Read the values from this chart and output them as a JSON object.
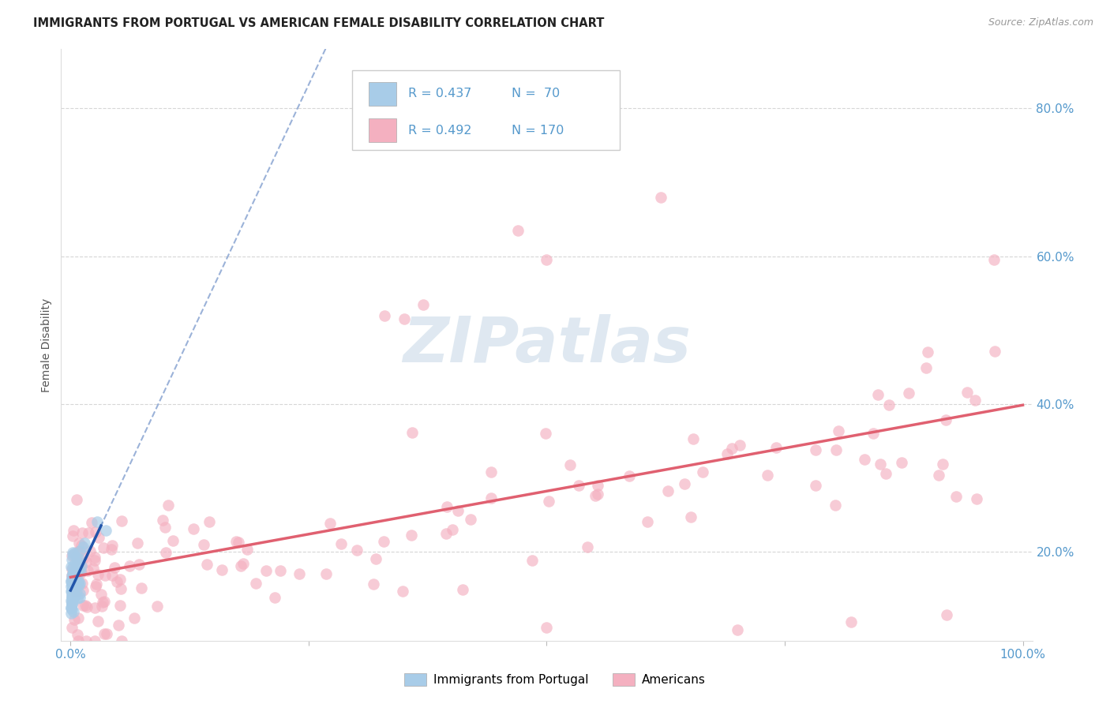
{
  "title": "IMMIGRANTS FROM PORTUGAL VS AMERICAN FEMALE DISABILITY CORRELATION CHART",
  "source": "Source: ZipAtlas.com",
  "ylabel": "Female Disability",
  "legend_blue_r": "R = 0.437",
  "legend_blue_n": "N =  70",
  "legend_pink_r": "R = 0.492",
  "legend_pink_n": "N = 170",
  "legend_label_blue": "Immigrants from Portugal",
  "legend_label_pink": "Americans",
  "blue_color": "#a8cce8",
  "pink_color": "#f4b0c0",
  "trendline_blue_color": "#2255aa",
  "trendline_pink_color": "#e06070",
  "watermark": "ZIPatlas",
  "background_color": "#ffffff",
  "grid_color": "#cccccc",
  "xlim": [
    -0.01,
    1.01
  ],
  "ylim": [
    0.08,
    0.88
  ],
  "ytick_positions": [
    0.2,
    0.4,
    0.6,
    0.8
  ],
  "ytick_labels": [
    "20.0%",
    "40.0%",
    "60.0%",
    "80.0%"
  ],
  "xtick_positions": [
    0.0,
    0.25,
    0.5,
    0.75,
    1.0
  ],
  "xtick_labels": [
    "0.0%",
    "",
    "",
    "",
    "100.0%"
  ],
  "tick_color": "#5599cc",
  "title_color": "#222222",
  "source_color": "#999999",
  "ylabel_color": "#555555"
}
